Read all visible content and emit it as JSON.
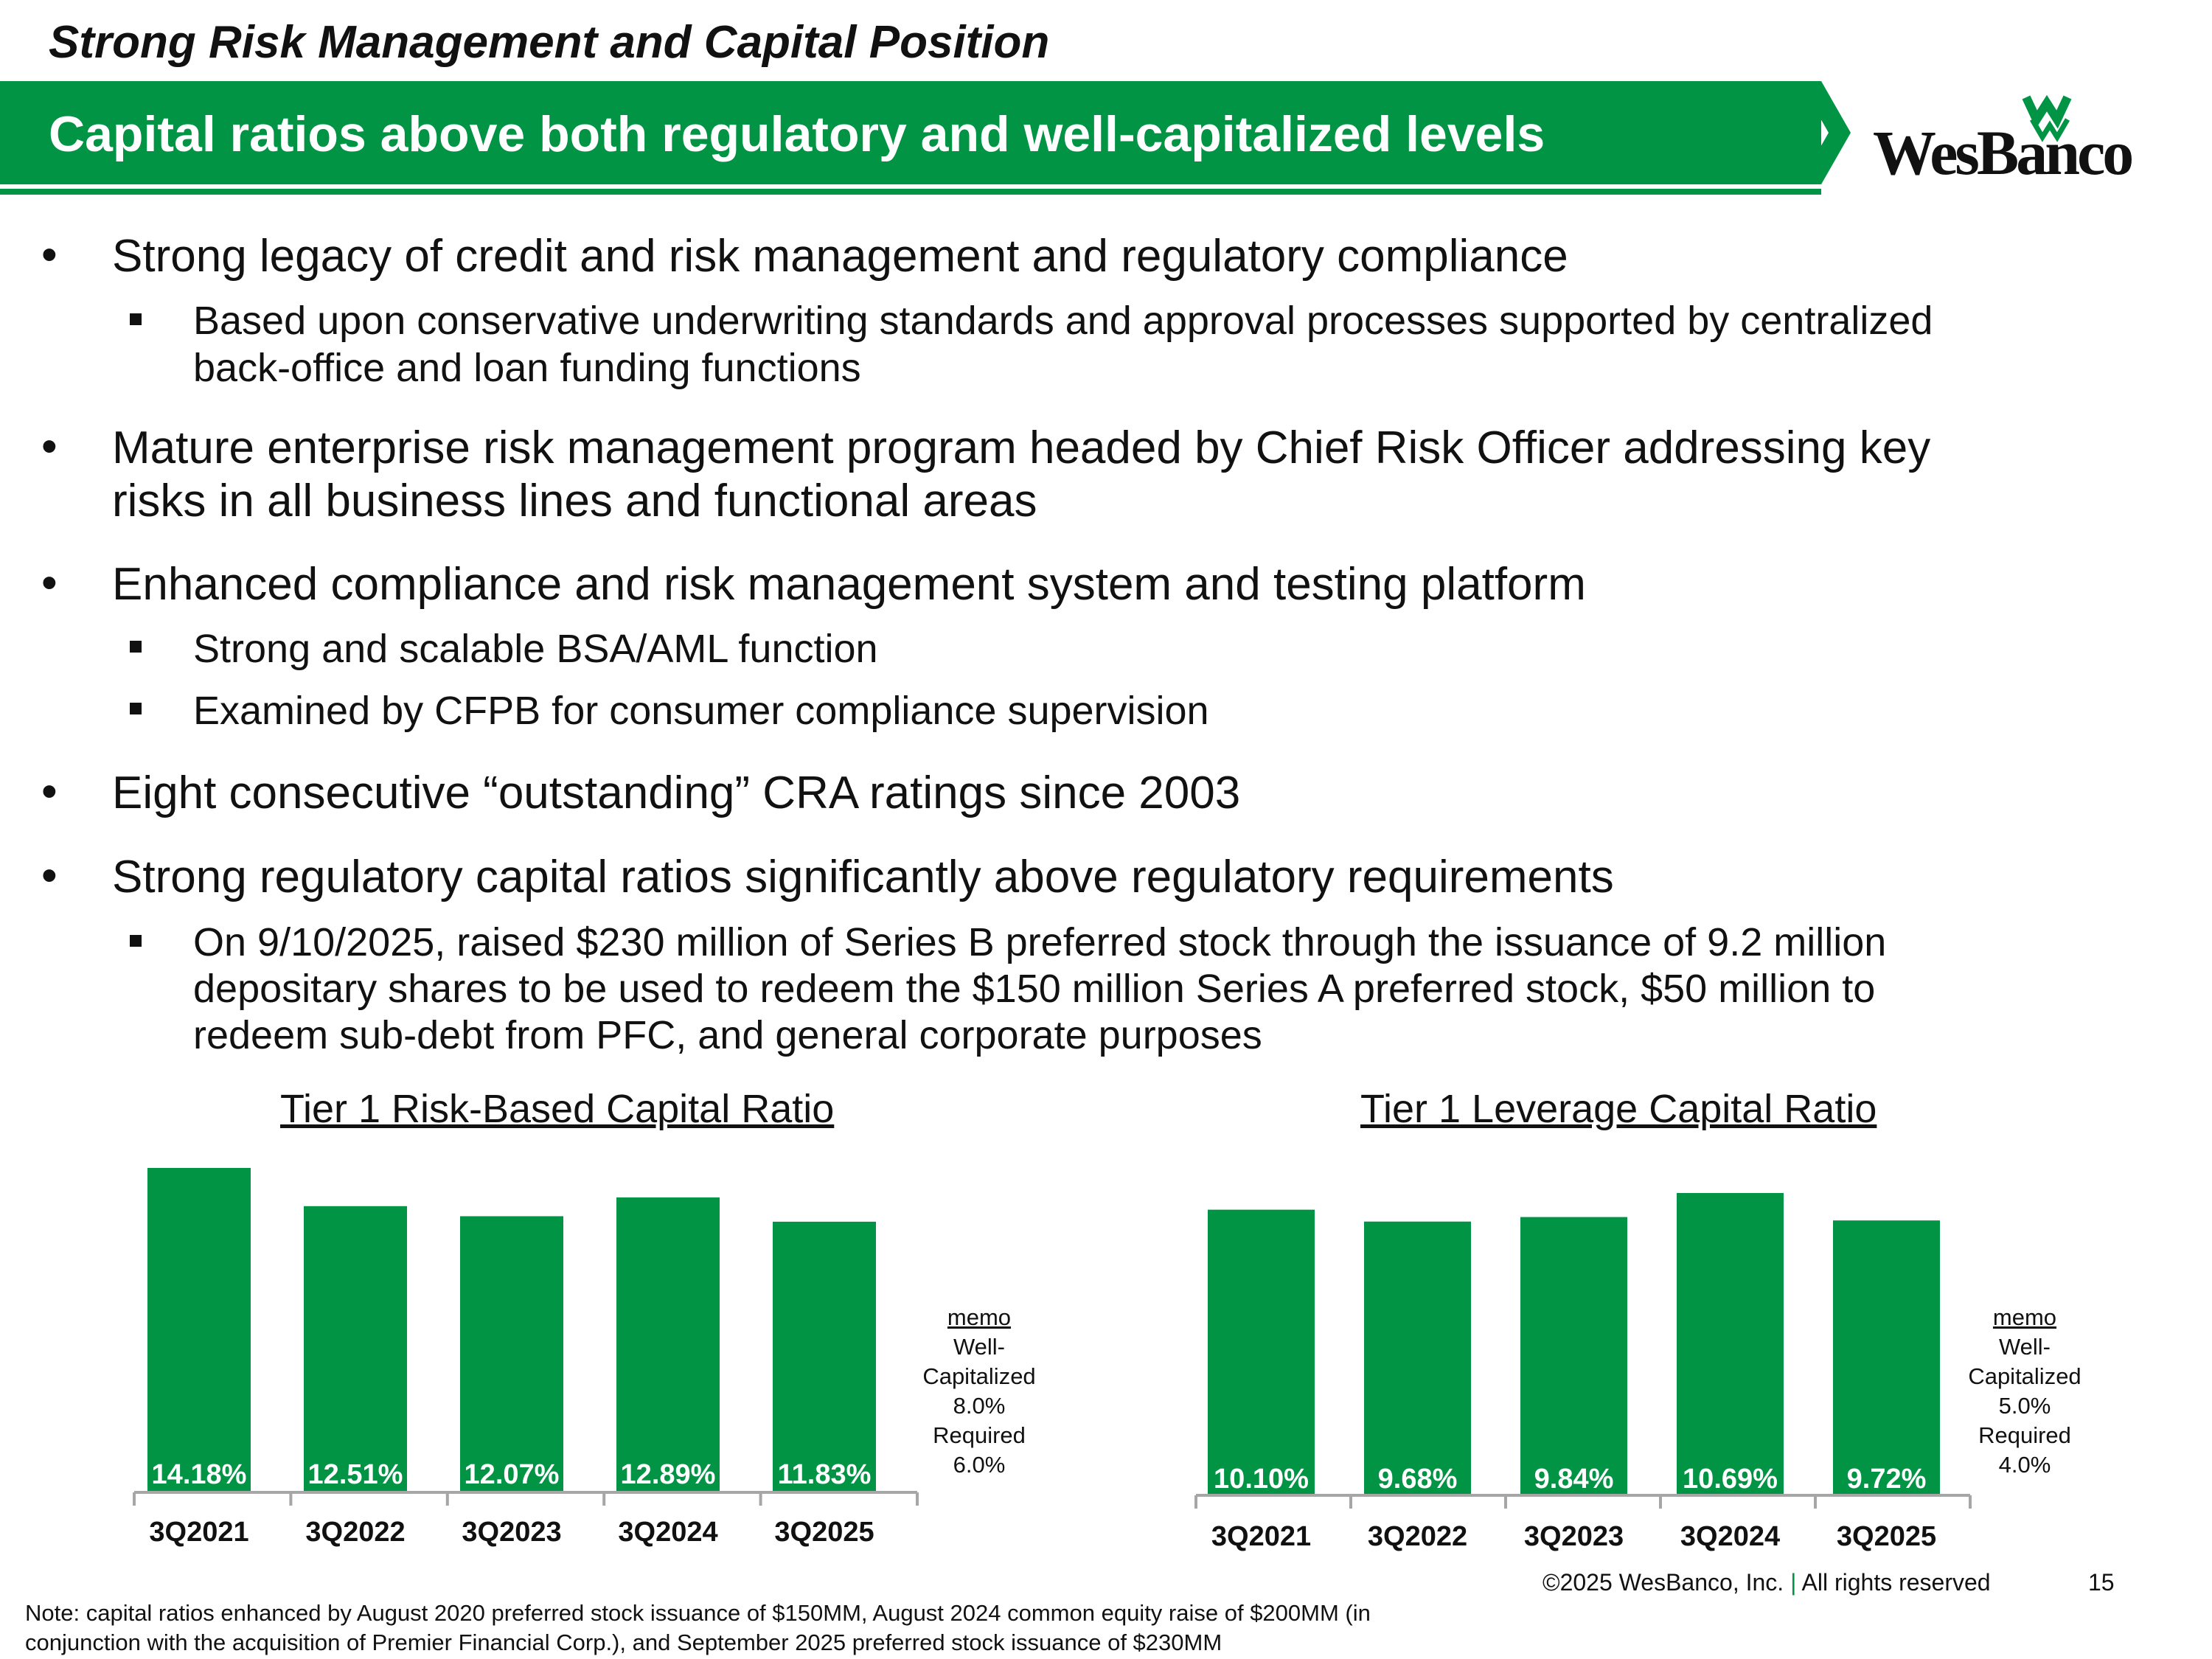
{
  "header": {
    "kicker": "Strong Risk Management and Capital Position",
    "banner_title": "Capital ratios above both regulatory and well-capitalized levels",
    "logo_text": "WesBanco",
    "brand_color": "#009444"
  },
  "bullets": {
    "b1": "Strong legacy of credit and risk management and regulatory compliance",
    "b1_s1_l1": "Based upon conservative underwriting standards and approval processes supported by centralized",
    "b1_s1_l2": "back-office and loan funding functions",
    "b2_l1": "Mature enterprise risk management program headed by Chief Risk Officer addressing key",
    "b2_l2": "risks in all business lines and functional areas",
    "b3": "Enhanced compliance and risk management system and testing platform",
    "b3_s1": "Strong and scalable BSA/AML function",
    "b3_s2": "Examined by CFPB for consumer compliance supervision",
    "b4": "Eight consecutive “outstanding” CRA ratings since 2003",
    "b5": "Strong regulatory capital ratios significantly above regulatory requirements",
    "b5_s1_l1": "On 9/10/2025, raised $230 million of Series B preferred stock through the issuance of 9.2 million",
    "b5_s1_l2": "depositary shares to be used to redeem the $150 million Series A preferred stock, $50 million to",
    "b5_s1_l3": "redeem sub-debt from PFC, and general corporate purposes"
  },
  "chart_data": [
    {
      "type": "bar",
      "title": "Tier 1 Risk-Based Capital Ratio",
      "categories": [
        "3Q2021",
        "3Q2022",
        "3Q2023",
        "3Q2024",
        "3Q2025"
      ],
      "values": [
        14.18,
        12.51,
        12.07,
        12.89,
        11.83
      ],
      "labels": [
        "14.18%",
        "12.51%",
        "12.07%",
        "12.89%",
        "11.83%"
      ],
      "ylim": [
        0,
        14.18
      ],
      "xlabel": "",
      "ylabel": "",
      "memo": {
        "heading": "memo",
        "line1": "Well-",
        "line2": "Capitalized",
        "line3": "8.0%",
        "line4": "Required",
        "line5": "6.0%"
      }
    },
    {
      "type": "bar",
      "title": "Tier 1 Leverage Capital Ratio",
      "categories": [
        "3Q2021",
        "3Q2022",
        "3Q2023",
        "3Q2024",
        "3Q2025"
      ],
      "values": [
        10.1,
        9.68,
        9.84,
        10.69,
        9.72
      ],
      "labels": [
        "10.10%",
        "9.68%",
        "9.84%",
        "10.69%",
        "9.72%"
      ],
      "ylim": [
        0,
        10.69
      ],
      "xlabel": "",
      "ylabel": "",
      "memo": {
        "heading": "memo",
        "line1": "Well-",
        "line2": "Capitalized",
        "line3": "5.0%",
        "line4": "Required",
        "line5": "4.0%"
      }
    }
  ],
  "footer": {
    "copyright": "©2025 WesBanco, Inc.",
    "separator": "|",
    "rights": "All rights reserved",
    "page": "15",
    "note_l1": "Note: capital ratios enhanced by August 2020 preferred stock issuance of $150MM, August 2024 common equity raise of $200MM (in",
    "note_l2": "conjunction with the acquisition of Premier Financial Corp.), and September 2025 preferred stock issuance of $230MM"
  }
}
